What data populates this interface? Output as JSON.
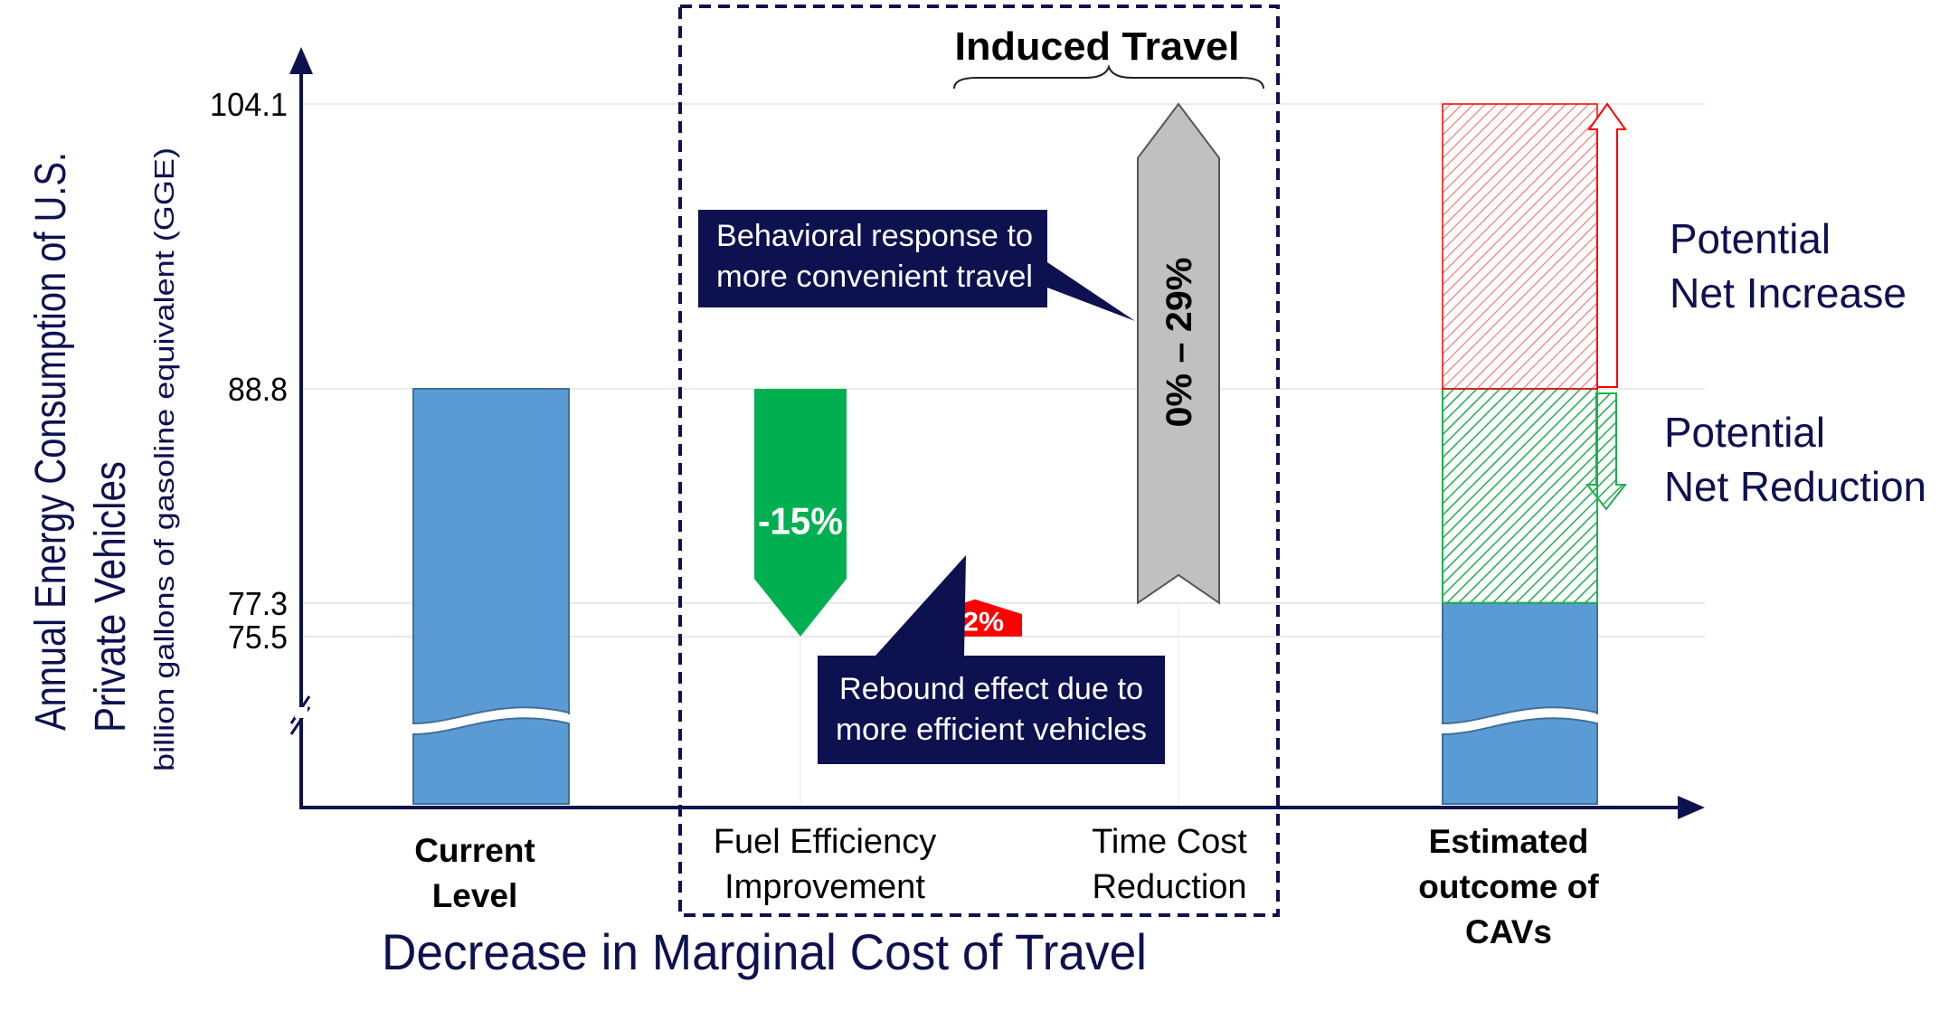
{
  "chart_data": {
    "type": "bar",
    "ylabel": "Annual Energy Consumption of U.S. Private Vehicles",
    "ylabel_sub": "billion gallons of gasoline equivalent (GGE)",
    "xlabel": "Decrease in Marginal Cost of Travel",
    "ticks": [
      {
        "value": 104.1,
        "label": "104.1"
      },
      {
        "value": 88.8,
        "label": "88.8"
      },
      {
        "value": 77.3,
        "label": "77.3"
      },
      {
        "value": 75.5,
        "label": "75.5"
      }
    ],
    "axis_break": true,
    "categories": [
      {
        "label_lines": [
          "Current",
          "Level"
        ],
        "bold": true
      },
      {
        "label_lines": [
          "Fuel Efficiency",
          "Improvement"
        ],
        "bold": false
      },
      {
        "label_lines": [
          "Time Cost",
          "Reduction"
        ],
        "bold": false
      },
      {
        "label_lines": [
          "Estimated",
          "outcome of",
          "CAVs"
        ],
        "bold": true
      }
    ],
    "current_level": 88.8,
    "fuel_efficiency": {
      "from": 88.8,
      "to": 75.5,
      "label": "-15%"
    },
    "rebound": {
      "from": 75.5,
      "to": 77.3,
      "label": "+2%"
    },
    "time_cost": {
      "from": 77.3,
      "to": 104.1,
      "label": "0%  –  29%"
    },
    "estimated": {
      "base": 77.3,
      "reduction_top": 88.8,
      "increase_top": 104.1
    },
    "dashed_group_label": "Induced Travel",
    "annotations": {
      "behavioral": [
        "Behavioral response to",
        "more convenient travel"
      ],
      "rebound": [
        "Rebound effect due to",
        "more efficient vehicles"
      ]
    },
    "legend": {
      "increase": [
        "Potential",
        "Net Increase"
      ],
      "reduction": [
        "Potential",
        "Net Reduction"
      ]
    },
    "colors": {
      "axis": "#0d1150",
      "blue_bar": "#5b9bd5",
      "blue_edge": "#3f6f9a",
      "green": "#00b050",
      "red": "#ff0000",
      "gray": "#c0c0c0",
      "callout": "#0d1150",
      "increase_hatch": "#ff5a5a",
      "reduction_hatch": "#1fae50"
    }
  }
}
